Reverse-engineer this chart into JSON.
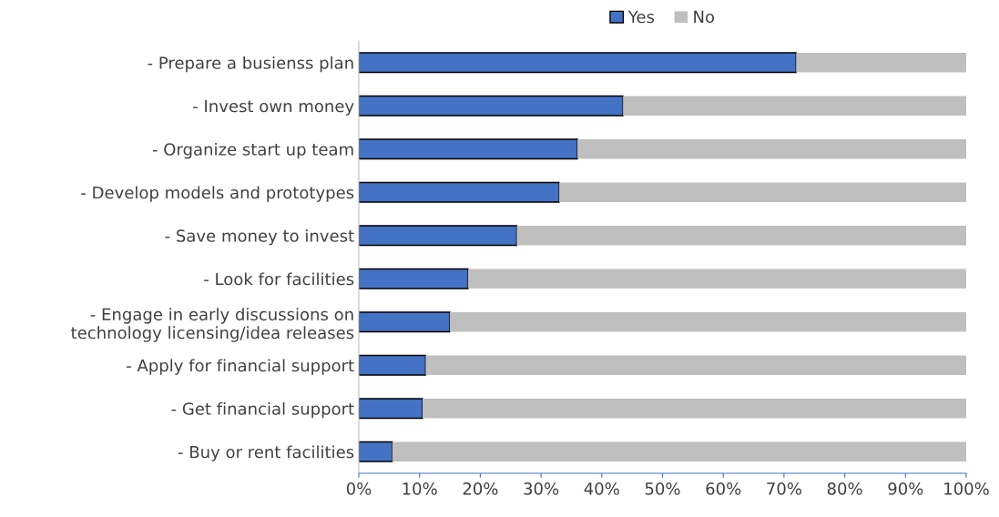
{
  "chart_data": {
    "type": "bar",
    "orientation": "horizontal",
    "stacked": true,
    "categories": [
      "- Prepare a busienss plan",
      "- Invest own money",
      "- Organize start up team",
      "- Develop models and prototypes",
      "- Save money to invest",
      "- Look for facilities",
      "- Engage in early discussions on\ntechnology licensing/idea releases",
      "- Apply for financial support",
      "- Get financial support",
      "- Buy or rent facilities"
    ],
    "series": [
      {
        "name": "Yes",
        "color": "#4472c4",
        "values": [
          72,
          43.5,
          36,
          33,
          26,
          18,
          15,
          11,
          10.5,
          5.5
        ]
      },
      {
        "name": "No",
        "color": "#bfbfbf",
        "values": [
          28,
          56.5,
          64,
          67,
          74,
          82,
          85,
          89,
          89.5,
          94.5
        ]
      }
    ],
    "xlim": [
      0,
      100
    ],
    "xticks": [
      {
        "value": 0,
        "label": "0%"
      },
      {
        "value": 10,
        "label": "10%"
      },
      {
        "value": 20,
        "label": "20%"
      },
      {
        "value": 30,
        "label": "30%"
      },
      {
        "value": 40,
        "label": "40%"
      },
      {
        "value": 50,
        "label": "50%"
      },
      {
        "value": 60,
        "label": "60%"
      },
      {
        "value": 70,
        "label": "70%"
      },
      {
        "value": 80,
        "label": "80%"
      },
      {
        "value": 90,
        "label": "90%"
      },
      {
        "value": 100,
        "label": "100%"
      }
    ],
    "grid": false,
    "legend": "top"
  }
}
